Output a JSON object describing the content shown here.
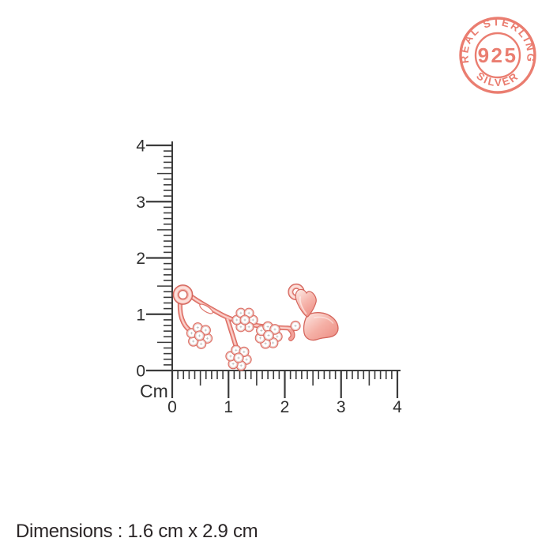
{
  "badge": {
    "top_text": "REAL STERLING",
    "center_text": "925",
    "bottom_text": "SILVER",
    "color": "#e97264"
  },
  "ruler": {
    "unit_label": "Cm",
    "vertical_tick_labels": [
      "4",
      "3",
      "2",
      "1",
      "0"
    ],
    "horizontal_tick_labels": [
      "0",
      "1",
      "2",
      "3",
      "4"
    ],
    "line_color": "#3b3b3b",
    "label_color": "#2e2e2e"
  },
  "pendant": {
    "description": "rose gold branch pendant with flower clusters, butterfly and clear stones",
    "metal_color": "#f2a199",
    "outline_color": "#d9695f",
    "stone_color": "#ffffff"
  },
  "footer": {
    "dimensions_text": "Dimensions : 1.6 cm x 2.9 cm"
  }
}
